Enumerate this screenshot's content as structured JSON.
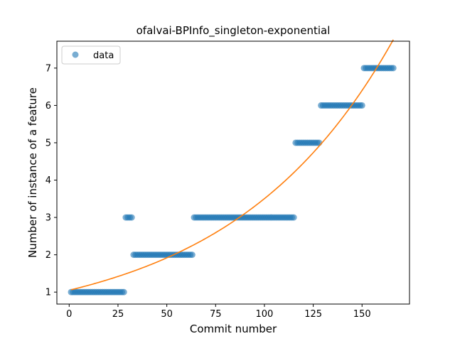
{
  "chart_data": {
    "type": "scatter",
    "title": "ofalvai-BPInfo_singleton-exponential",
    "xlabel": "Commit number",
    "ylabel": "Number of instance of a feature",
    "xlim": [
      -6.3,
      174.3
    ],
    "ylim": [
      0.68,
      7.72
    ],
    "xticks": [
      0,
      25,
      50,
      75,
      100,
      125,
      150
    ],
    "xtick_labels": [
      "0",
      "25",
      "50",
      "75",
      "100",
      "125",
      "150"
    ],
    "yticks": [
      1,
      2,
      3,
      4,
      5,
      6,
      7
    ],
    "ytick_labels": [
      "1",
      "2",
      "3",
      "4",
      "5",
      "6",
      "7"
    ],
    "grid": false,
    "legend": {
      "position": "top-left",
      "entries": [
        "data"
      ]
    },
    "series": [
      {
        "name": "data",
        "kind": "points",
        "color": "#1f77b4",
        "segments": [
          {
            "x_start": 1,
            "x_end": 28,
            "y": 1
          },
          {
            "x_start": 29,
            "x_end": 32,
            "y": 3
          },
          {
            "x_start": 33,
            "x_end": 63,
            "y": 2
          },
          {
            "x_start": 64,
            "x_end": 115,
            "y": 3
          },
          {
            "x_start": 116,
            "x_end": 128,
            "y": 5
          },
          {
            "x_start": 129,
            "x_end": 150,
            "y": 6
          },
          {
            "x_start": 151,
            "x_end": 166,
            "y": 7
          }
        ]
      },
      {
        "kind": "fit-line",
        "color": "#ff7f0e",
        "model": "exponential",
        "a": 1.05,
        "b": 0.01205,
        "x_range": [
          1,
          166
        ]
      }
    ]
  }
}
